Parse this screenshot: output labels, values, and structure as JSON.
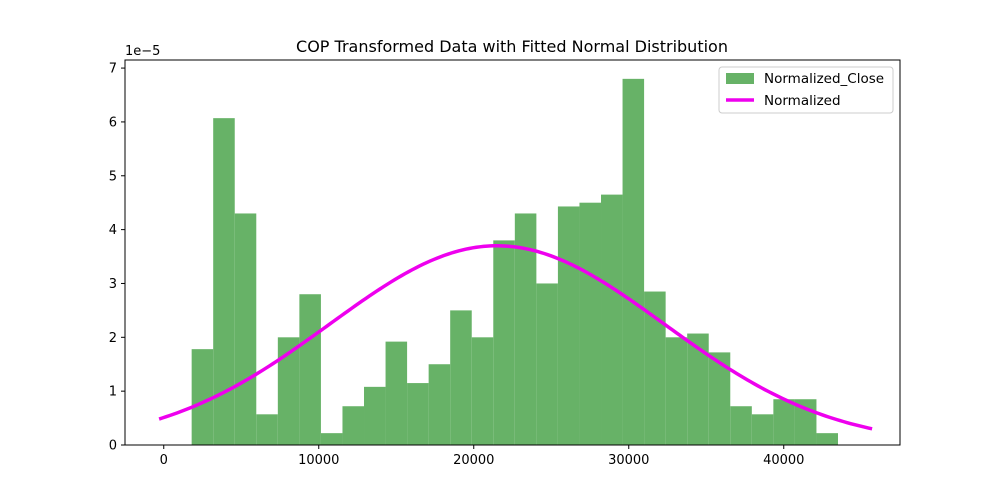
{
  "chart_data": {
    "type": "bar",
    "title": "COP Transformed Data with Fitted Normal Distribution",
    "xlabel": "",
    "ylabel": "",
    "y_offset_label": "1e−5",
    "y_scale": 1e-05,
    "xlim": [
      -2500,
      47500
    ],
    "ylim": [
      0,
      7.15
    ],
    "x_ticks": [
      0,
      10000,
      20000,
      30000,
      40000
    ],
    "x_tick_labels": [
      "0",
      "10000",
      "20000",
      "30000",
      "40000"
    ],
    "y_ticks": [
      0,
      1,
      2,
      3,
      4,
      5,
      6,
      7
    ],
    "y_tick_labels": [
      "0",
      "1",
      "2",
      "3",
      "4",
      "5",
      "6",
      "7"
    ],
    "bin_start": 1800,
    "bin_width": 1390,
    "histogram": {
      "name": "Normalized_Close",
      "color": "#67b267",
      "values": [
        1.78,
        6.07,
        4.3,
        0.57,
        2.0,
        2.8,
        0.22,
        0.72,
        1.08,
        1.92,
        1.15,
        1.5,
        2.5,
        2.0,
        3.8,
        4.3,
        3.0,
        4.43,
        4.5,
        4.65,
        6.8,
        2.85,
        2.0,
        2.07,
        1.72,
        0.72,
        0.57,
        0.85,
        0.85,
        0.22
      ]
    },
    "fitted_curve": {
      "name": "Normalized",
      "color": "#ee00ee",
      "mean": 21500,
      "std": 10800,
      "peak": 3.7,
      "x_range": [
        -300,
        45700
      ]
    },
    "legend": {
      "placement": "top-right",
      "entries": [
        "Normalized_Close",
        "Normalized"
      ]
    },
    "grid": false
  }
}
